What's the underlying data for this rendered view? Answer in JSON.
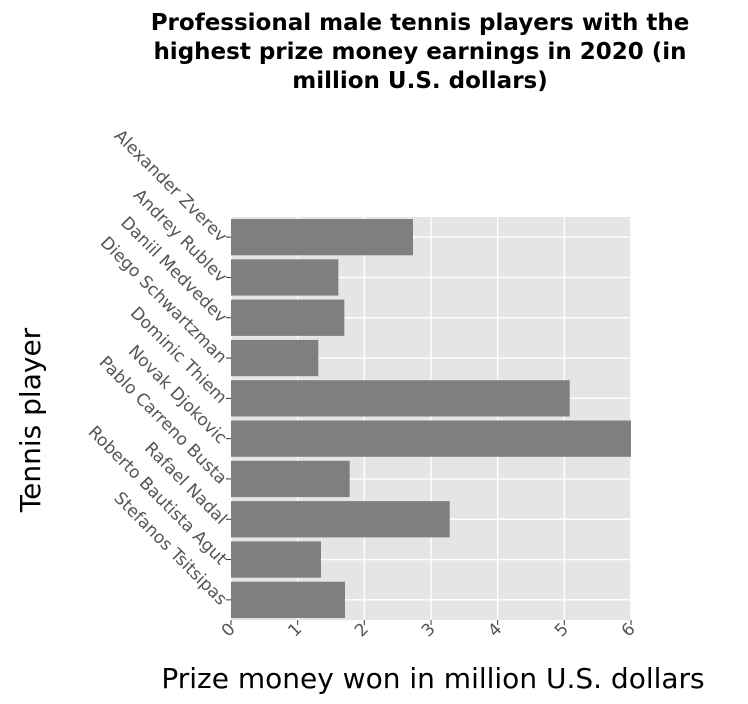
{
  "chart_data": {
    "type": "bar",
    "orientation": "horizontal",
    "title": "Professional male tennis players with the highest prize money earnings in 2020 (in million U.S. dollars)",
    "title_lines": [
      "Professional male tennis players with the",
      "highest prize money earnings in 2020 (in",
      "million U.S. dollars)"
    ],
    "xlabel": "Prize money won in million U.S. dollars",
    "ylabel": "Tennis player",
    "categories": [
      "Alexander Zverev",
      "Andrey Rublev",
      "Daniil Medvedev",
      "Diego Schwartzman",
      "Dominic Thiem",
      "Novak Djokovic",
      "Pablo Carreno Busta",
      "Rafael Nadal",
      "Roberto Bautista Agut",
      "Stefanos Tsitsipas"
    ],
    "values": [
      2.73,
      1.61,
      1.7,
      1.31,
      5.08,
      6.0,
      1.78,
      3.28,
      1.35,
      1.71
    ],
    "xlim": [
      0,
      6
    ],
    "xticks": [
      "0",
      "1",
      "2",
      "3",
      "4",
      "5",
      "6"
    ],
    "grid": true,
    "legend": "none",
    "colors": {
      "bar": "#7f7f7f",
      "panel": "#e5e5e5",
      "grid": "#ffffff"
    }
  }
}
